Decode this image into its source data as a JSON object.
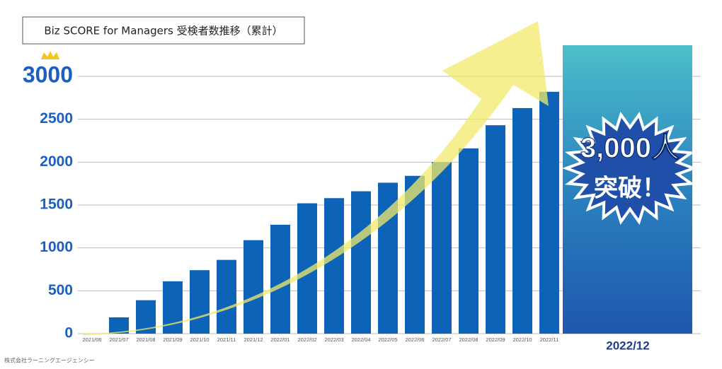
{
  "chart_data": {
    "type": "bar",
    "title": "Biz SCORE for Managers 受検者数推移（累計）",
    "categories": [
      "2021/06",
      "2021/07",
      "2021/08",
      "2021/09",
      "2021/10",
      "2021/11",
      "2021/12",
      "2022/01",
      "2022/02",
      "2022/03",
      "2022/04",
      "2022/05",
      "2022/06",
      "2022/07",
      "2022/08",
      "2022/09",
      "2022/10",
      "2022/11"
    ],
    "values": [
      0,
      190,
      390,
      610,
      740,
      860,
      1090,
      1270,
      1520,
      1580,
      1660,
      1760,
      1840,
      2000,
      2160,
      2430,
      2630,
      2820
    ],
    "color": "#0c63b8",
    "highlight": {
      "category": "2022/12",
      "value": 3000,
      "value_label": "3,000人",
      "note": "突破！"
    },
    "ylim": [
      0,
      3000
    ],
    "yticks": [
      0,
      500,
      1000,
      1500,
      2000,
      2500,
      3000
    ],
    "grid": true,
    "footnote": "株式会社ラーニングエージェンシー"
  }
}
